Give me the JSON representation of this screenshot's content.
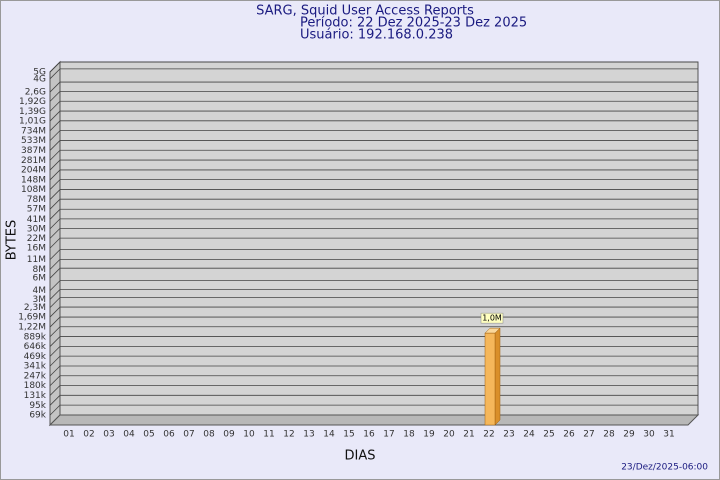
{
  "chart_data": {
    "type": "bar",
    "title": "SARG, Squid User Access Reports",
    "subtitle": [
      "Período: 22 Dez 2025-23 Dez 2025",
      "Usuário: 192.168.0.238"
    ],
    "x_label": "DIAS",
    "y_label": "BYTES",
    "footer": "23/Dez/2025-06:00",
    "categories": [
      "01",
      "02",
      "03",
      "04",
      "05",
      "06",
      "07",
      "08",
      "09",
      "10",
      "11",
      "12",
      "13",
      "14",
      "15",
      "16",
      "17",
      "18",
      "19",
      "20",
      "21",
      "22",
      "23",
      "24",
      "25",
      "26",
      "27",
      "28",
      "29",
      "30",
      "31"
    ],
    "values": [
      null,
      null,
      null,
      null,
      null,
      null,
      null,
      null,
      null,
      null,
      null,
      null,
      null,
      null,
      null,
      null,
      null,
      null,
      null,
      null,
      null,
      1000000,
      null,
      null,
      null,
      null,
      null,
      null,
      null,
      null,
      null
    ],
    "value_labels": [
      null,
      null,
      null,
      null,
      null,
      null,
      null,
      null,
      null,
      null,
      null,
      null,
      null,
      null,
      null,
      null,
      null,
      null,
      null,
      null,
      null,
      "1,0M",
      null,
      null,
      null,
      null,
      null,
      null,
      null,
      null,
      null
    ],
    "color": "#f5b75b",
    "log_scale": true,
    "grid": true,
    "ylim": [
      50000,
      5000000000
    ],
    "yticks": [
      {
        "value": 69000,
        "label": "69k"
      },
      {
        "value": 95000,
        "label": "95k"
      },
      {
        "value": 131000,
        "label": "131k"
      },
      {
        "value": 180000,
        "label": "180k"
      },
      {
        "value": 247000,
        "label": "247k"
      },
      {
        "value": 341000,
        "label": "341k"
      },
      {
        "value": 469000,
        "label": "469k"
      },
      {
        "value": 646000,
        "label": "646k"
      },
      {
        "value": 889000,
        "label": "889k"
      },
      {
        "value": 1220000,
        "label": "1,22M"
      },
      {
        "value": 1690000,
        "label": "1,69M"
      },
      {
        "value": 2300000,
        "label": "2,3M"
      },
      {
        "value": 3000000,
        "label": "3M"
      },
      {
        "value": 4000000,
        "label": "4M"
      },
      {
        "value": 6000000,
        "label": "6M"
      },
      {
        "value": 8000000,
        "label": "8M"
      },
      {
        "value": 11000000,
        "label": "11M"
      },
      {
        "value": 16000000,
        "label": "16M"
      },
      {
        "value": 22000000,
        "label": "22M"
      },
      {
        "value": 30000000,
        "label": "30M"
      },
      {
        "value": 41000000,
        "label": "41M"
      },
      {
        "value": 57000000,
        "label": "57M"
      },
      {
        "value": 78000000,
        "label": "78M"
      },
      {
        "value": 108000000,
        "label": "108M"
      },
      {
        "value": 148000000,
        "label": "148M"
      },
      {
        "value": 204000000,
        "label": "204M"
      },
      {
        "value": 281000000,
        "label": "281M"
      },
      {
        "value": 387000000,
        "label": "387M"
      },
      {
        "value": 533000000,
        "label": "533M"
      },
      {
        "value": 734000000,
        "label": "734M"
      },
      {
        "value": 1010000000,
        "label": "1,01G"
      },
      {
        "value": 1390000000,
        "label": "1,39G"
      },
      {
        "value": 1920000000,
        "label": "1,92G"
      },
      {
        "value": 2600000000,
        "label": "2,6G"
      },
      {
        "value": 4000000000,
        "label": "4G"
      },
      {
        "value": 5000000000,
        "label": "5G"
      }
    ]
  }
}
